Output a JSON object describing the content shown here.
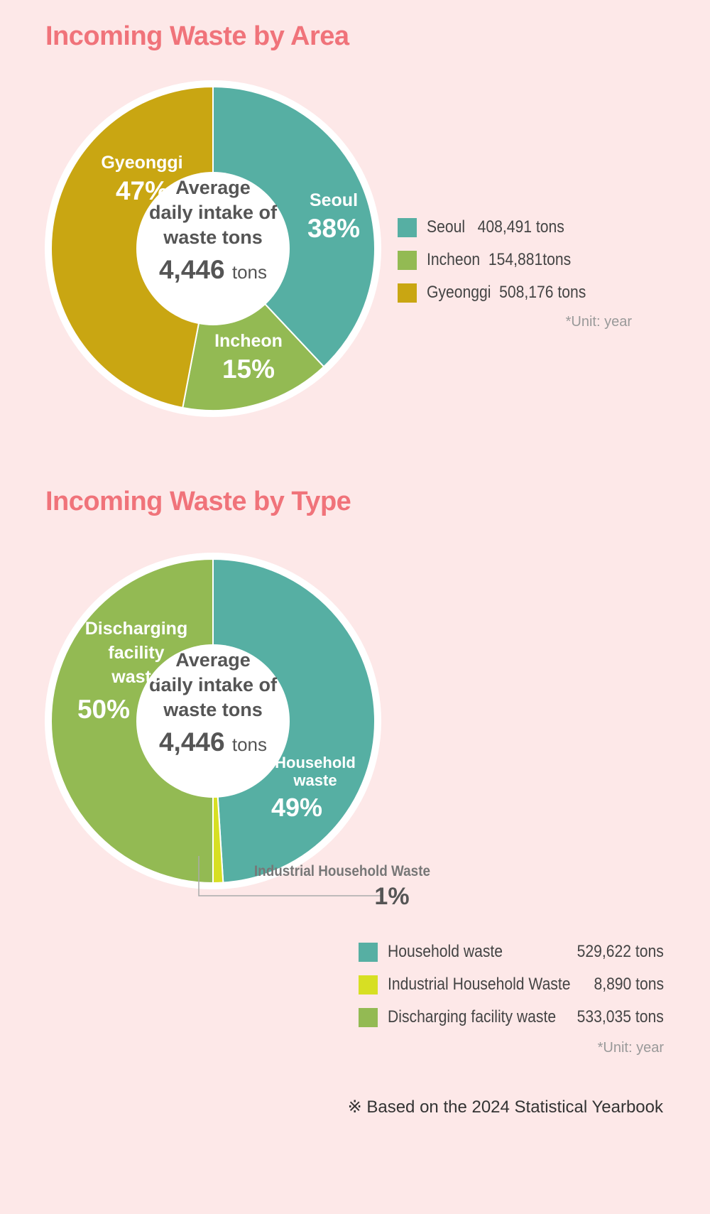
{
  "chart_data": [
    {
      "type": "pie",
      "title": "Incoming Waste by Area",
      "center": {
        "line1": "Average",
        "line2": "daily intake of",
        "line3": "waste tons",
        "value": "4,446",
        "unit": "tons"
      },
      "categories": [
        "Seoul",
        "Incheon",
        "Gyeonggi"
      ],
      "values": [
        38,
        15,
        47
      ],
      "slice_labels": [
        "38%",
        "15%",
        "47%"
      ],
      "colors": [
        "#56afa3",
        "#93ba53",
        "#c9a612"
      ],
      "legend": [
        {
          "label": "Seoul",
          "value": "408,491 tons"
        },
        {
          "label": "Incheon",
          "value": "154,881tons"
        },
        {
          "label": "Gyeonggi",
          "value": "508,176 tons"
        }
      ],
      "unit_note": "*Unit: year"
    },
    {
      "type": "pie",
      "title": "Incoming Waste by Type",
      "center": {
        "line1": "Average",
        "line2": "daily intake of",
        "line3": "waste tons",
        "value": "4,446",
        "unit": "tons"
      },
      "categories": [
        "Household waste",
        "Industrial Household Waste",
        "Discharging facility waste"
      ],
      "slice_names": [
        [
          "Household",
          "waste"
        ],
        [
          "Industrial Household Waste"
        ],
        [
          "Discharging",
          "facility",
          "waste"
        ]
      ],
      "values": [
        49,
        1,
        50
      ],
      "slice_labels": [
        "49%",
        "1%",
        "50%"
      ],
      "colors": [
        "#56afa3",
        "#d7df23",
        "#93ba53"
      ],
      "legend": [
        {
          "label": "Household waste",
          "value": "529,622 tons"
        },
        {
          "label": "Industrial Household Waste",
          "value": "8,890 tons"
        },
        {
          "label": "Discharging facility waste",
          "value": "533,035 tons"
        }
      ],
      "unit_note": "*Unit: year"
    }
  ],
  "footnote": "※ Based on the 2024 Statistical Yearbook"
}
